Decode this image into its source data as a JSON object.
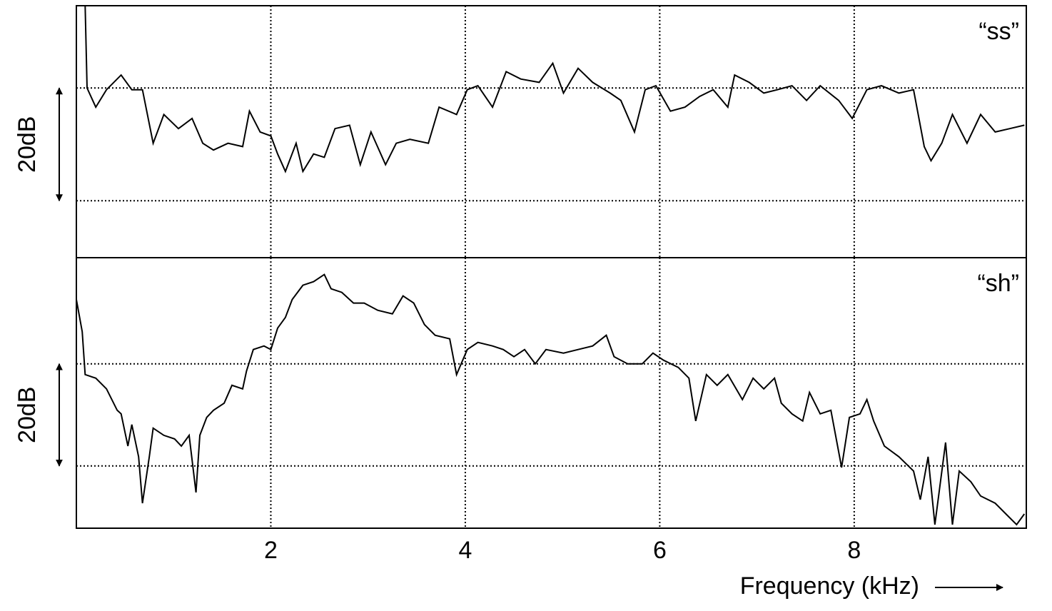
{
  "chart_data": [
    {
      "type": "line",
      "annotation": "“ss”",
      "scale_label": "20dB",
      "x": [
        0.09,
        0.11,
        0.2,
        0.31,
        0.46,
        0.57,
        0.68,
        0.79,
        0.9,
        1.05,
        1.19,
        1.3,
        1.41,
        1.56,
        1.71,
        1.78,
        1.89,
        2.0,
        2.07,
        2.15,
        2.26,
        2.33,
        2.44,
        2.55,
        2.66,
        2.81,
        2.92,
        3.03,
        3.18,
        3.29,
        3.43,
        3.62,
        3.73,
        3.91,
        4.02,
        4.13,
        4.28,
        4.42,
        4.57,
        4.76,
        4.9,
        5.01,
        5.16,
        5.31,
        5.49,
        5.6,
        5.74,
        5.85,
        5.96,
        6.11,
        6.26,
        6.41,
        6.55,
        6.7,
        6.77,
        6.92,
        7.07,
        7.21,
        7.36,
        7.51,
        7.65,
        7.84,
        7.98,
        8.13,
        8.28,
        8.46,
        8.61,
        8.72,
        8.79,
        8.9,
        9.01,
        9.16,
        9.3,
        9.45,
        9.6,
        9.75
      ],
      "values": [
        14.6,
        0,
        -3.4,
        -0.3,
        2.3,
        -0.3,
        -0.3,
        -9.8,
        -4.7,
        -7.2,
        -5.4,
        -9.8,
        -11.0,
        -9.8,
        -10.4,
        -4.1,
        -7.8,
        -8.5,
        -11.7,
        -14.8,
        -9.8,
        -14.8,
        -11.7,
        -12.3,
        -7.2,
        -6.6,
        -13.6,
        -7.8,
        -13.6,
        -9.8,
        -9.1,
        -9.8,
        -3.4,
        -4.7,
        -0.3,
        0.4,
        -3.4,
        2.9,
        1.6,
        1.0,
        4.4,
        -0.9,
        3.5,
        1.0,
        -0.9,
        -2.2,
        -7.8,
        -0.3,
        0.4,
        -4.1,
        -3.4,
        -1.5,
        -0.3,
        -3.4,
        2.3,
        1.0,
        -0.9,
        -0.3,
        0.4,
        -2.2,
        0.4,
        -2.2,
        -5.4,
        -0.3,
        0.4,
        -0.9,
        -0.3,
        -10.4,
        -12.9,
        -9.8,
        -4.7,
        -9.8,
        -4.7,
        -7.8,
        -7.2,
        -6.6
      ],
      "color": "#000000",
      "xlim": [
        0,
        9.77
      ],
      "xticks": [
        2,
        4,
        6,
        8
      ],
      "ylim": [
        -30.1,
        14.6
      ],
      "yticks": [
        0,
        -20
      ],
      "grid": true
    },
    {
      "type": "line",
      "annotation": "“sh”",
      "scale_label": "20dB",
      "xlabel": "Frequency (kHz)",
      "x": [
        0.0,
        0.06,
        0.09,
        0.2,
        0.31,
        0.42,
        0.46,
        0.53,
        0.57,
        0.64,
        0.68,
        0.75,
        0.79,
        0.9,
        1.01,
        1.08,
        1.16,
        1.23,
        1.27,
        1.34,
        1.41,
        1.52,
        1.6,
        1.71,
        1.75,
        1.82,
        1.93,
        2.0,
        2.07,
        2.15,
        2.22,
        2.33,
        2.44,
        2.55,
        2.62,
        2.73,
        2.85,
        2.96,
        3.1,
        3.25,
        3.36,
        3.47,
        3.58,
        3.69,
        3.84,
        3.91,
        4.02,
        4.13,
        4.28,
        4.39,
        4.5,
        4.61,
        4.72,
        4.83,
        5.01,
        5.16,
        5.31,
        5.45,
        5.53,
        5.67,
        5.82,
        5.93,
        6.04,
        6.19,
        6.3,
        6.37,
        6.48,
        6.59,
        6.7,
        6.85,
        6.96,
        7.07,
        7.18,
        7.25,
        7.36,
        7.47,
        7.54,
        7.65,
        7.76,
        7.87,
        7.95,
        8.06,
        8.13,
        8.2,
        8.31,
        8.46,
        8.61,
        8.68,
        8.76,
        8.83,
        8.94,
        9.01,
        9.08,
        9.2,
        9.3,
        9.45,
        9.56,
        9.67,
        9.75
      ],
      "values": [
        12.6,
        6.3,
        -2.1,
        -2.8,
        -4.9,
        -9.1,
        -9.8,
        -16.1,
        -11.9,
        -18.2,
        -27.3,
        -18.2,
        -12.6,
        -14.0,
        -14.7,
        -16.1,
        -14.0,
        -25.2,
        -14.0,
        -10.5,
        -9.1,
        -7.7,
        -4.2,
        -4.9,
        -1.4,
        2.8,
        3.5,
        2.8,
        7.0,
        9.1,
        12.6,
        15.4,
        16.1,
        17.5,
        14.7,
        14.0,
        11.9,
        11.9,
        10.5,
        9.8,
        13.3,
        11.9,
        7.7,
        5.6,
        4.9,
        -2.1,
        2.8,
        4.2,
        3.5,
        2.8,
        1.4,
        2.8,
        0,
        2.8,
        2.1,
        2.8,
        3.5,
        5.6,
        1.4,
        0,
        0,
        2.1,
        0.7,
        -0.7,
        -2.8,
        -11.2,
        -2.1,
        -4.2,
        -2.1,
        -7.0,
        -2.8,
        -4.9,
        -2.8,
        -7.7,
        -9.8,
        -11.2,
        -5.6,
        -9.8,
        -9.1,
        -20.3,
        -10.5,
        -9.8,
        -7.0,
        -11.2,
        -16.1,
        -18.2,
        -21.0,
        -26.6,
        -18.2,
        -31.5,
        -15.4,
        -31.5,
        -21.0,
        -23.1,
        -25.9,
        -27.3,
        -29.4,
        -31.5,
        -29.4
      ],
      "color": "#000000",
      "xlim": [
        0,
        9.77
      ],
      "xticks": [
        2,
        4,
        6,
        8
      ],
      "ylim": [
        -32.2,
        20.8
      ],
      "yticks": [
        0,
        -20
      ],
      "grid": true
    }
  ]
}
